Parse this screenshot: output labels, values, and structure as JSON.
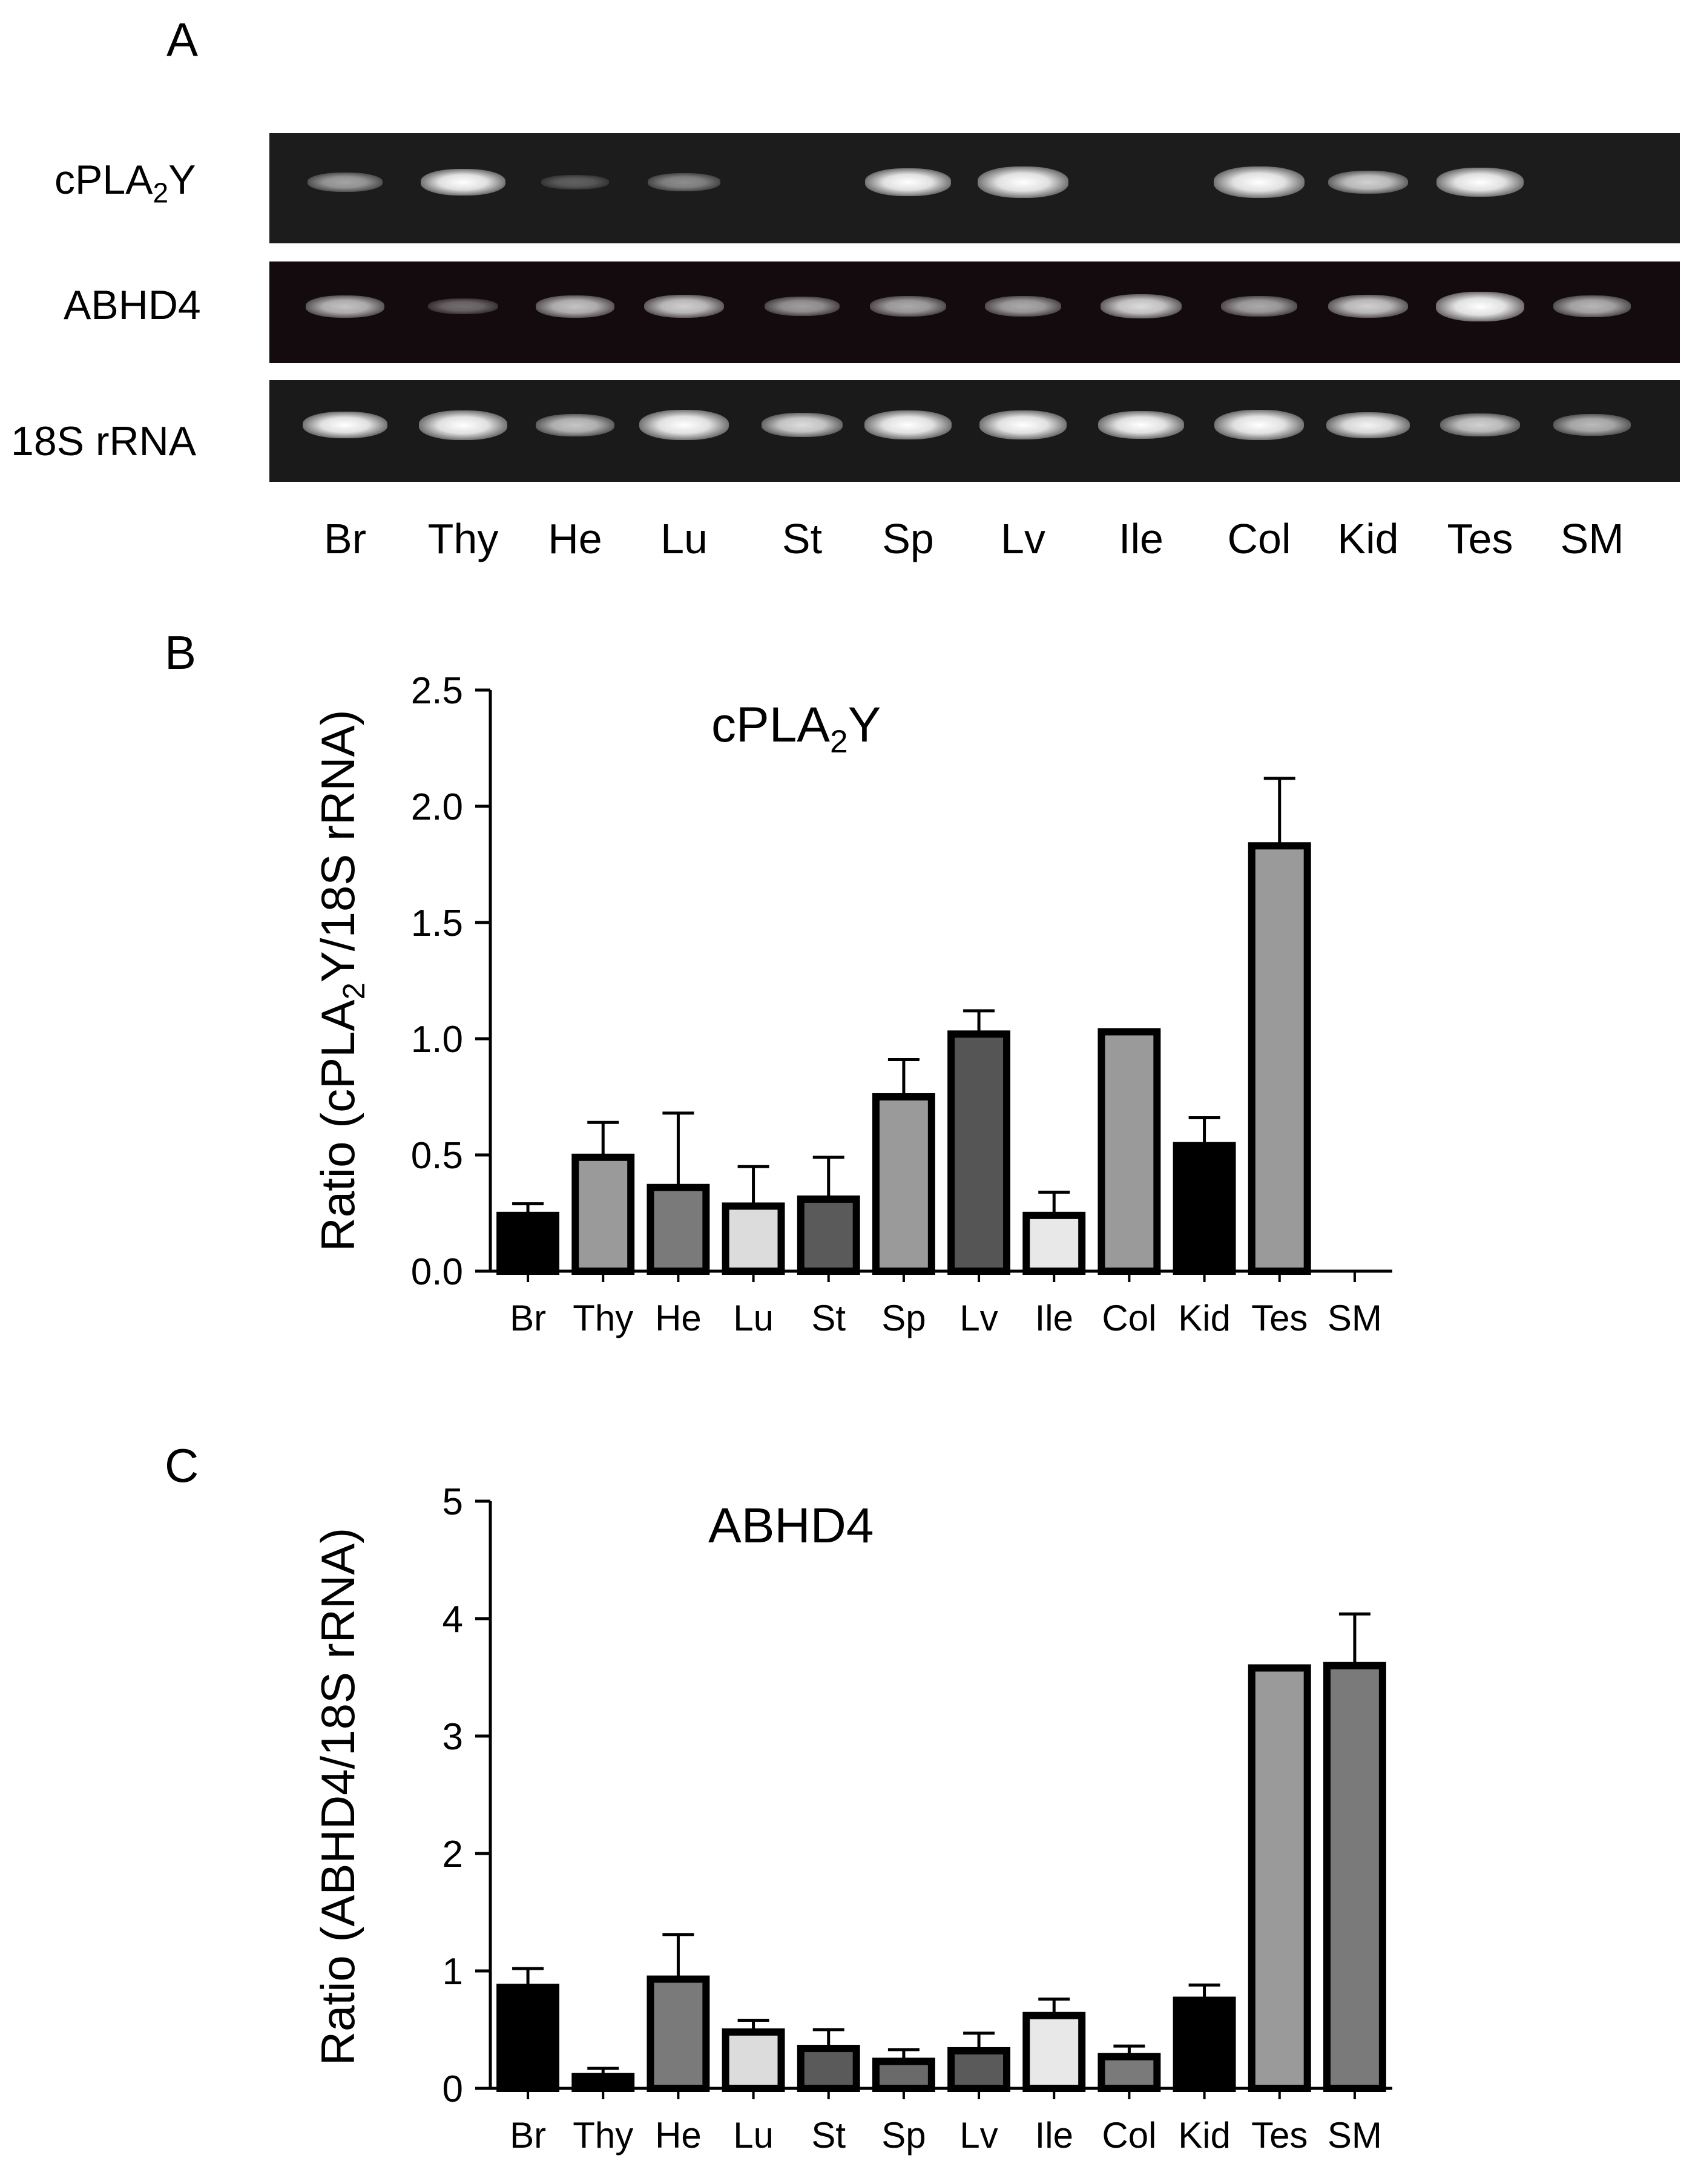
{
  "panel_a": {
    "letter": "A",
    "rows": [
      {
        "label_main": "cPLA",
        "label_sub": "2",
        "label_tail": "Y",
        "color": "#1c1c1c",
        "intensities": [
          0.35,
          0.75,
          0.05,
          0.25,
          0.0,
          0.8,
          1.0,
          0.0,
          1.0,
          0.55,
          0.85,
          0.0
        ]
      },
      {
        "label_main": "ABHD4",
        "label_sub": "",
        "label_tail": "",
        "color": "#140b0f",
        "intensities": [
          0.5,
          0.15,
          0.5,
          0.55,
          0.35,
          0.4,
          0.4,
          0.6,
          0.4,
          0.55,
          0.9,
          0.45
        ]
      },
      {
        "label_main": "18S rRNA",
        "label_sub": "",
        "label_tail": "",
        "color": "#1a1a1a",
        "intensities": [
          0.75,
          0.9,
          0.5,
          0.95,
          0.6,
          0.85,
          0.85,
          0.8,
          0.95,
          0.7,
          0.55,
          0.45
        ]
      }
    ],
    "lanes": [
      "Br",
      "Thy",
      "He",
      "Lu",
      "St",
      "Sp",
      "Lv",
      "Ile",
      "Col",
      "Kid",
      "Tes",
      "SM"
    ]
  },
  "chart_data": [
    {
      "type": "bar",
      "panel": "B",
      "title_main": "cPLA",
      "title_sub": "2",
      "title_tail": "Y",
      "ylabel_main": "Ratio (cPLA",
      "ylabel_sub": "2",
      "ylabel_tail": "Y/18S rRNA)",
      "ylim": [
        0,
        2.5
      ],
      "ytick_labels": [
        "0.0",
        "0.5",
        "1.0",
        "1.5",
        "2.0",
        "2.5"
      ],
      "categories": [
        "Br",
        "Thy",
        "He",
        "Lu",
        "St",
        "Sp",
        "Lv",
        "Ile",
        "Col",
        "Kid",
        "Tes",
        "SM"
      ],
      "values": [
        0.24,
        0.49,
        0.36,
        0.28,
        0.31,
        0.75,
        1.02,
        0.24,
        1.03,
        0.54,
        1.83,
        0.0
      ],
      "errors": [
        0.05,
        0.15,
        0.32,
        0.17,
        0.18,
        0.16,
        0.1,
        0.1,
        0.0,
        0.12,
        0.29,
        0.0
      ],
      "colors": [
        "#000000",
        "#9a9a9a",
        "#7a7a7a",
        "#dcdcdc",
        "#5a5a5a",
        "#9a9a9a",
        "#555555",
        "#e8e8e8",
        "#9a9a9a",
        "#000000",
        "#9a9a9a",
        "#9a9a9a"
      ]
    },
    {
      "type": "bar",
      "panel": "C",
      "title_main": "ABHD4",
      "title_sub": "",
      "title_tail": "",
      "ylabel_main": "Ratio (ABHD4/18S rRNA)",
      "ylabel_sub": "",
      "ylabel_tail": "",
      "ylim": [
        0,
        5
      ],
      "ytick_labels": [
        "0",
        "1",
        "2",
        "3",
        "4",
        "5"
      ],
      "categories": [
        "Br",
        "Thy",
        "He",
        "Lu",
        "St",
        "Sp",
        "Lv",
        "Ile",
        "Col",
        "Kid",
        "Tes",
        "SM"
      ],
      "values": [
        0.86,
        0.1,
        0.93,
        0.48,
        0.34,
        0.23,
        0.32,
        0.62,
        0.27,
        0.75,
        3.58,
        3.6
      ],
      "errors": [
        0.16,
        0.07,
        0.38,
        0.1,
        0.16,
        0.1,
        0.15,
        0.14,
        0.09,
        0.13,
        0.0,
        0.44
      ],
      "colors": [
        "#000000",
        "#000000",
        "#7a7a7a",
        "#dcdcdc",
        "#5a5a5a",
        "#6a6a6a",
        "#5a5a5a",
        "#e8e8e8",
        "#7a7a7a",
        "#000000",
        "#9a9a9a",
        "#7a7a7a"
      ]
    }
  ]
}
